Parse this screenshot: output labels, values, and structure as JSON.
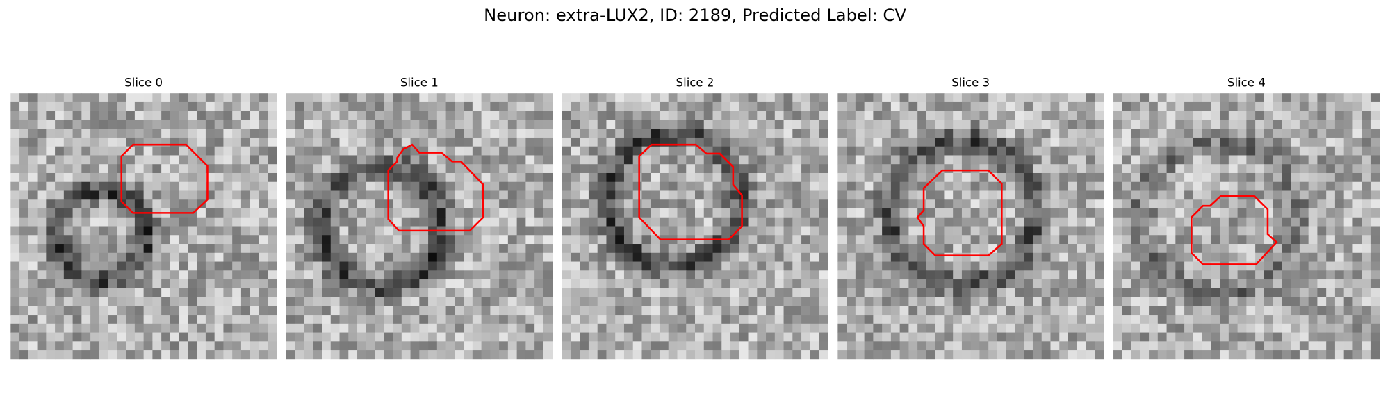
{
  "header": {
    "title": "Neuron: extra-LUX2, ID: 2189, Predicted Label: CV"
  },
  "panels": [
    {
      "title": "Slice 0"
    },
    {
      "title": "Slice 1"
    },
    {
      "title": "Slice 2"
    },
    {
      "title": "Slice 3"
    },
    {
      "title": "Slice 4"
    }
  ]
}
